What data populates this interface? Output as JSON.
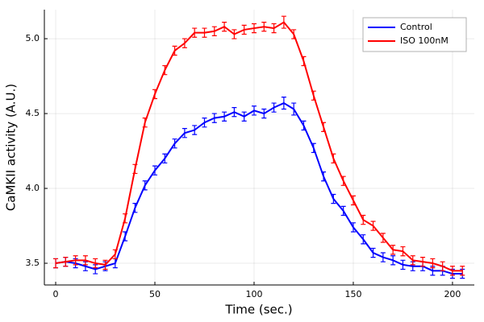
{
  "chart_data": {
    "type": "line",
    "xlabel": "Time (sec.)",
    "ylabel": "CaMKII activity (A.U.)",
    "x": [
      0,
      5,
      10,
      15,
      20,
      25,
      30,
      35,
      40,
      45,
      50,
      55,
      60,
      65,
      70,
      75,
      80,
      85,
      90,
      95,
      100,
      105,
      110,
      115,
      120,
      125,
      130,
      135,
      140,
      145,
      150,
      155,
      160,
      165,
      170,
      175,
      180,
      185,
      190,
      195,
      200,
      205
    ],
    "series": [
      {
        "name": "Control",
        "color": "#0000ff",
        "values": [
          3.5,
          3.51,
          3.5,
          3.48,
          3.46,
          3.48,
          3.5,
          3.68,
          3.87,
          4.02,
          4.12,
          4.2,
          4.3,
          4.37,
          4.39,
          4.44,
          4.47,
          4.48,
          4.51,
          4.48,
          4.52,
          4.5,
          4.54,
          4.57,
          4.53,
          4.42,
          4.27,
          4.08,
          3.93,
          3.85,
          3.74,
          3.66,
          3.57,
          3.54,
          3.52,
          3.49,
          3.48,
          3.48,
          3.45,
          3.45,
          3.43,
          3.43
        ],
        "errors": [
          0.03,
          0.03,
          0.03,
          0.03,
          0.03,
          0.03,
          0.03,
          0.03,
          0.03,
          0.03,
          0.03,
          0.03,
          0.03,
          0.03,
          0.03,
          0.03,
          0.03,
          0.03,
          0.03,
          0.03,
          0.03,
          0.03,
          0.03,
          0.04,
          0.04,
          0.03,
          0.03,
          0.03,
          0.03,
          0.03,
          0.03,
          0.03,
          0.03,
          0.03,
          0.03,
          0.03,
          0.03,
          0.03,
          0.03,
          0.03,
          0.03,
          0.03
        ]
      },
      {
        "name": "ISO 100nM",
        "color": "#ff0000",
        "values": [
          3.5,
          3.51,
          3.52,
          3.52,
          3.5,
          3.49,
          3.56,
          3.8,
          4.13,
          4.44,
          4.63,
          4.79,
          4.92,
          4.97,
          5.04,
          5.04,
          5.05,
          5.08,
          5.03,
          5.06,
          5.07,
          5.08,
          5.07,
          5.11,
          5.03,
          4.85,
          4.62,
          4.41,
          4.2,
          4.05,
          3.92,
          3.79,
          3.75,
          3.67,
          3.59,
          3.58,
          3.52,
          3.51,
          3.5,
          3.48,
          3.45,
          3.45
        ],
        "errors": [
          0.03,
          0.03,
          0.03,
          0.03,
          0.03,
          0.03,
          0.03,
          0.03,
          0.03,
          0.03,
          0.03,
          0.03,
          0.03,
          0.03,
          0.03,
          0.03,
          0.03,
          0.03,
          0.03,
          0.03,
          0.03,
          0.03,
          0.03,
          0.04,
          0.03,
          0.03,
          0.03,
          0.03,
          0.03,
          0.03,
          0.03,
          0.03,
          0.03,
          0.03,
          0.03,
          0.03,
          0.03,
          0.03,
          0.03,
          0.03,
          0.03,
          0.03
        ]
      }
    ],
    "xlim": [
      -5.7,
      211
    ],
    "xticks": [
      0,
      50,
      100,
      150,
      200
    ],
    "ylim": [
      3.355,
      5.194
    ],
    "yticks": [
      3.5,
      {
        "value": 4,
        "label": "4.0"
      },
      4.5,
      {
        "value": 5,
        "label": "5.0"
      }
    ],
    "grid": true,
    "legend": "top-right"
  }
}
